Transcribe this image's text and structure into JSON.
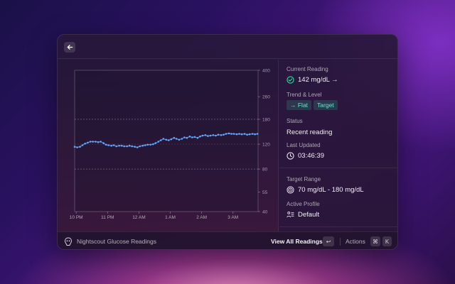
{
  "header": {
    "back_icon": "arrow-left-icon"
  },
  "detail": {
    "current_reading": {
      "label": "Current Reading",
      "value": "142 mg/dL →",
      "icon": "check-circle-icon",
      "color": "#34d399"
    },
    "trend": {
      "label": "Trend & Level",
      "tags": [
        "→ Flat",
        "Target"
      ]
    },
    "status": {
      "label": "Status",
      "value": "Recent reading"
    },
    "last_updated": {
      "label": "Last Updated",
      "value": "03:46:39",
      "icon": "clock-icon"
    },
    "target_range": {
      "label": "Target Range",
      "value": "70 mg/dL - 180 mg/dL",
      "icon": "target-icon"
    },
    "active_profile": {
      "label": "Active Profile",
      "value": "Default",
      "icon": "profile-icon"
    }
  },
  "footer": {
    "icon": "nightscout-icon",
    "title": "Nightscout Glucose Readings",
    "primary_action": "View All Readings",
    "primary_key": "↩",
    "actions_label": "Actions",
    "actions_keys": [
      "⌘",
      "K"
    ]
  },
  "chart_data": {
    "type": "line",
    "title": "",
    "xlabel": "",
    "ylabel": "",
    "y_scale": "log",
    "ylim": [
      40,
      400
    ],
    "y_ticks": [
      40,
      55,
      80,
      120,
      180,
      260,
      400
    ],
    "target_lines": [
      80,
      180
    ],
    "reference_line": 120,
    "x_tick_labels": [
      "10 PM",
      "11 PM",
      "12 AM",
      "1 AM",
      "2 AM",
      "3 AM"
    ],
    "x_tick_hours": [
      22,
      23,
      24,
      25,
      26,
      27
    ],
    "x_range_hours": [
      21.95,
      27.8
    ],
    "line_color": "#60a5fa",
    "series": [
      {
        "x_hours": [
          21.95,
          22.03,
          22.12,
          22.2,
          22.28,
          22.37,
          22.45,
          22.53,
          22.62,
          22.7,
          22.78,
          22.87,
          22.95,
          23.03,
          23.12,
          23.2,
          23.28,
          23.37,
          23.45,
          23.53,
          23.62,
          23.7,
          23.78,
          23.87,
          23.95,
          24.03,
          24.12,
          24.2,
          24.28,
          24.37,
          24.45,
          24.53,
          24.62,
          24.7,
          24.78,
          24.87,
          24.95,
          25.03,
          25.12,
          25.2,
          25.28,
          25.37,
          25.45,
          25.53,
          25.62,
          25.7,
          25.78,
          25.87,
          25.95,
          26.03,
          26.12,
          26.2,
          26.28,
          26.37,
          26.45,
          26.53,
          26.62,
          26.7,
          26.78,
          26.87,
          26.95,
          27.03,
          27.12,
          27.2,
          27.28,
          27.37,
          27.45,
          27.53,
          27.62,
          27.7,
          27.78
        ],
        "values": [
          115,
          114,
          115,
          118,
          121,
          123,
          125,
          125,
          125,
          124,
          125,
          122,
          119,
          118,
          117,
          118,
          116,
          117,
          117,
          116,
          116,
          117,
          116,
          115,
          114,
          116,
          117,
          118,
          119,
          119,
          120,
          122,
          125,
          128,
          131,
          129,
          128,
          130,
          133,
          131,
          129,
          131,
          134,
          133,
          136,
          134,
          135,
          133,
          136,
          138,
          139,
          137,
          138,
          139,
          138,
          140,
          139,
          140,
          142,
          143,
          142,
          142,
          141,
          142,
          141,
          142,
          140,
          141,
          142,
          141,
          142
        ]
      }
    ]
  }
}
